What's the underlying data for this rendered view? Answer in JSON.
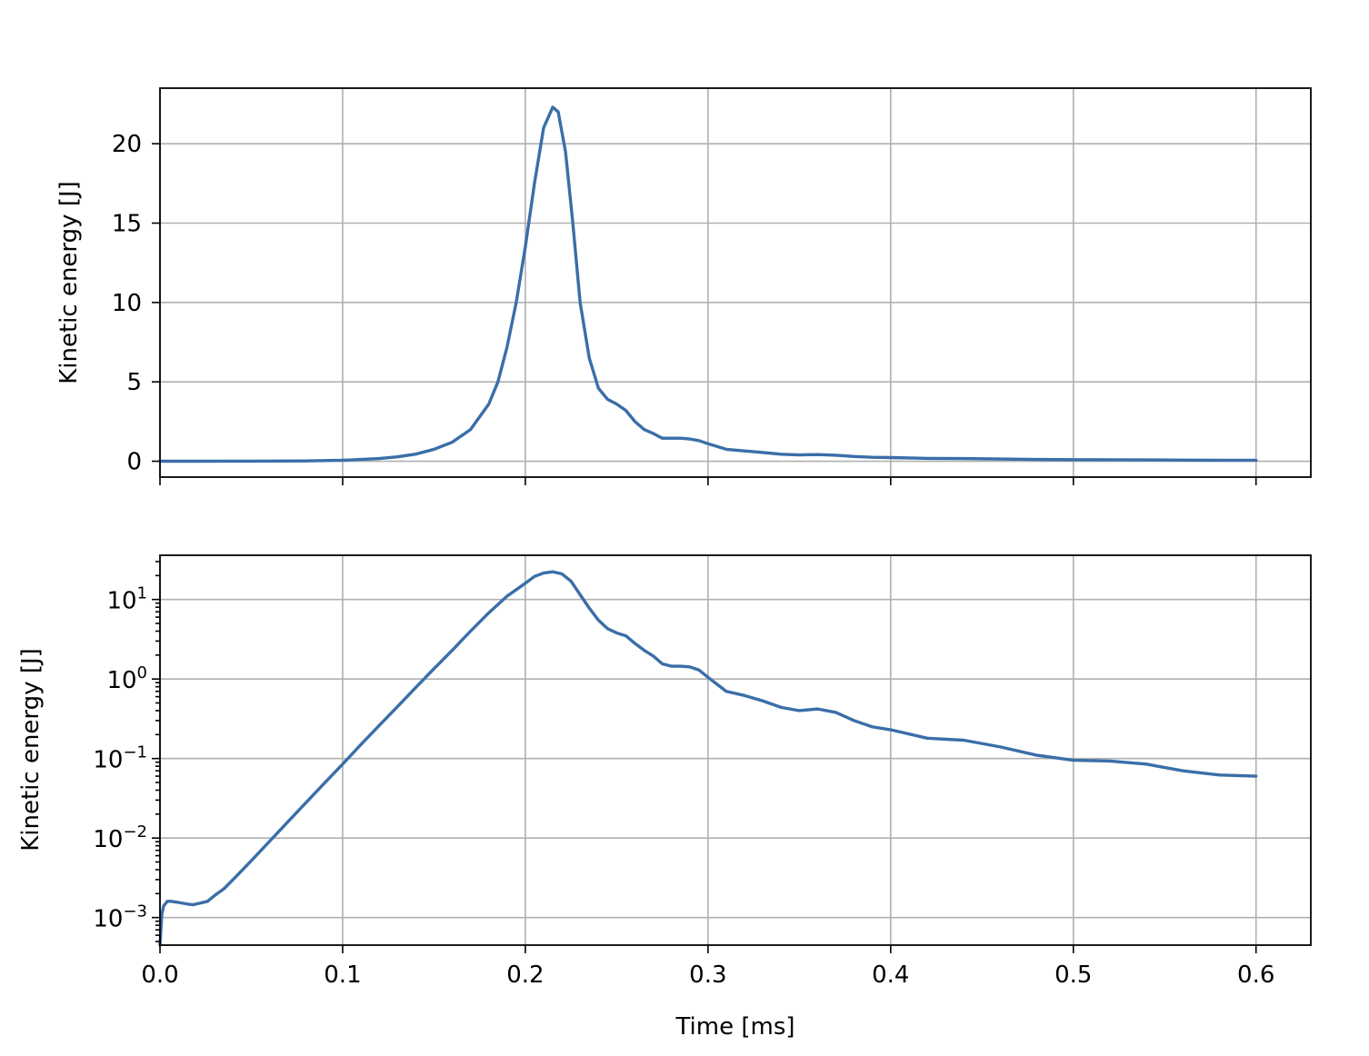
{
  "chart_data": [
    {
      "type": "line",
      "scale_y": "linear",
      "ylabel": "Kinetic energy [J]",
      "xlabel": "",
      "xlim": [
        0.0,
        0.63
      ],
      "ylim": [
        -1.0,
        23.5
      ],
      "x_ticks": [
        0.0,
        0.1,
        0.2,
        0.3,
        0.4,
        0.5,
        0.6
      ],
      "y_ticks": [
        0,
        5,
        10,
        15,
        20
      ],
      "y_tick_labels": [
        "0",
        "5",
        "10",
        "15",
        "20"
      ],
      "grid": true,
      "series": [
        {
          "color": "#3a6ea8",
          "x": [
            0.0,
            0.02,
            0.05,
            0.08,
            0.1,
            0.12,
            0.13,
            0.14,
            0.15,
            0.16,
            0.17,
            0.18,
            0.185,
            0.19,
            0.195,
            0.2,
            0.205,
            0.21,
            0.215,
            0.218,
            0.222,
            0.226,
            0.23,
            0.235,
            0.24,
            0.245,
            0.25,
            0.255,
            0.26,
            0.265,
            0.27,
            0.275,
            0.28,
            0.285,
            0.29,
            0.295,
            0.3,
            0.31,
            0.32,
            0.33,
            0.34,
            0.35,
            0.36,
            0.37,
            0.38,
            0.39,
            0.4,
            0.42,
            0.44,
            0.46,
            0.48,
            0.5,
            0.52,
            0.54,
            0.56,
            0.58,
            0.6
          ],
          "y": [
            0.001,
            0.0015,
            0.006,
            0.02,
            0.06,
            0.17,
            0.28,
            0.45,
            0.75,
            1.2,
            2.0,
            3.6,
            5.0,
            7.2,
            10.0,
            13.5,
            17.5,
            21.0,
            22.3,
            22.0,
            19.5,
            15.0,
            10.0,
            6.5,
            4.6,
            3.9,
            3.6,
            3.2,
            2.5,
            2.0,
            1.75,
            1.45,
            1.45,
            1.45,
            1.4,
            1.3,
            1.1,
            0.75,
            0.65,
            0.55,
            0.44,
            0.4,
            0.42,
            0.38,
            0.3,
            0.25,
            0.23,
            0.18,
            0.17,
            0.14,
            0.11,
            0.095,
            0.093,
            0.085,
            0.07,
            0.062,
            0.06
          ]
        }
      ]
    },
    {
      "type": "line",
      "scale_y": "log",
      "ylabel": "Kinetic energy [J]",
      "xlabel": "Time [ms]",
      "xlim": [
        0.0,
        0.63
      ],
      "ylim": [
        0.00045,
        36
      ],
      "x_ticks": [
        0.0,
        0.1,
        0.2,
        0.3,
        0.4,
        0.5,
        0.6
      ],
      "x_tick_labels": [
        "0.0",
        "0.1",
        "0.2",
        "0.3",
        "0.4",
        "0.5",
        "0.6"
      ],
      "y_ticks": [
        0.001,
        0.01,
        0.1,
        1,
        10
      ],
      "y_tick_mantissa": "10",
      "y_tick_exponents": [
        "−3",
        "−2",
        "−1",
        "0",
        "1"
      ],
      "grid": true,
      "series": [
        {
          "color": "#3a6ea8",
          "x": [
            0.0,
            0.001,
            0.002,
            0.004,
            0.006,
            0.01,
            0.015,
            0.018,
            0.022,
            0.026,
            0.03,
            0.035,
            0.04,
            0.05,
            0.06,
            0.07,
            0.08,
            0.09,
            0.1,
            0.11,
            0.12,
            0.13,
            0.14,
            0.15,
            0.16,
            0.17,
            0.18,
            0.19,
            0.2,
            0.205,
            0.21,
            0.215,
            0.22,
            0.225,
            0.23,
            0.235,
            0.24,
            0.245,
            0.25,
            0.255,
            0.26,
            0.265,
            0.27,
            0.275,
            0.28,
            0.285,
            0.29,
            0.295,
            0.3,
            0.31,
            0.32,
            0.33,
            0.34,
            0.35,
            0.36,
            0.37,
            0.38,
            0.39,
            0.4,
            0.42,
            0.44,
            0.46,
            0.48,
            0.5,
            0.52,
            0.54,
            0.56,
            0.58,
            0.6
          ],
          "y": [
            0.00045,
            0.0011,
            0.0014,
            0.0016,
            0.0016,
            0.00155,
            0.00148,
            0.00145,
            0.00152,
            0.0016,
            0.0019,
            0.0023,
            0.003,
            0.0052,
            0.0091,
            0.016,
            0.028,
            0.049,
            0.085,
            0.15,
            0.26,
            0.45,
            0.78,
            1.35,
            2.3,
            4.0,
            6.8,
            11.0,
            16.0,
            19.5,
            21.5,
            22.3,
            21.0,
            17.0,
            11.5,
            7.8,
            5.5,
            4.3,
            3.8,
            3.5,
            2.8,
            2.3,
            1.95,
            1.55,
            1.45,
            1.45,
            1.42,
            1.3,
            1.05,
            0.7,
            0.62,
            0.53,
            0.44,
            0.4,
            0.42,
            0.38,
            0.3,
            0.25,
            0.23,
            0.18,
            0.17,
            0.14,
            0.11,
            0.095,
            0.093,
            0.085,
            0.07,
            0.062,
            0.06
          ]
        }
      ]
    }
  ]
}
